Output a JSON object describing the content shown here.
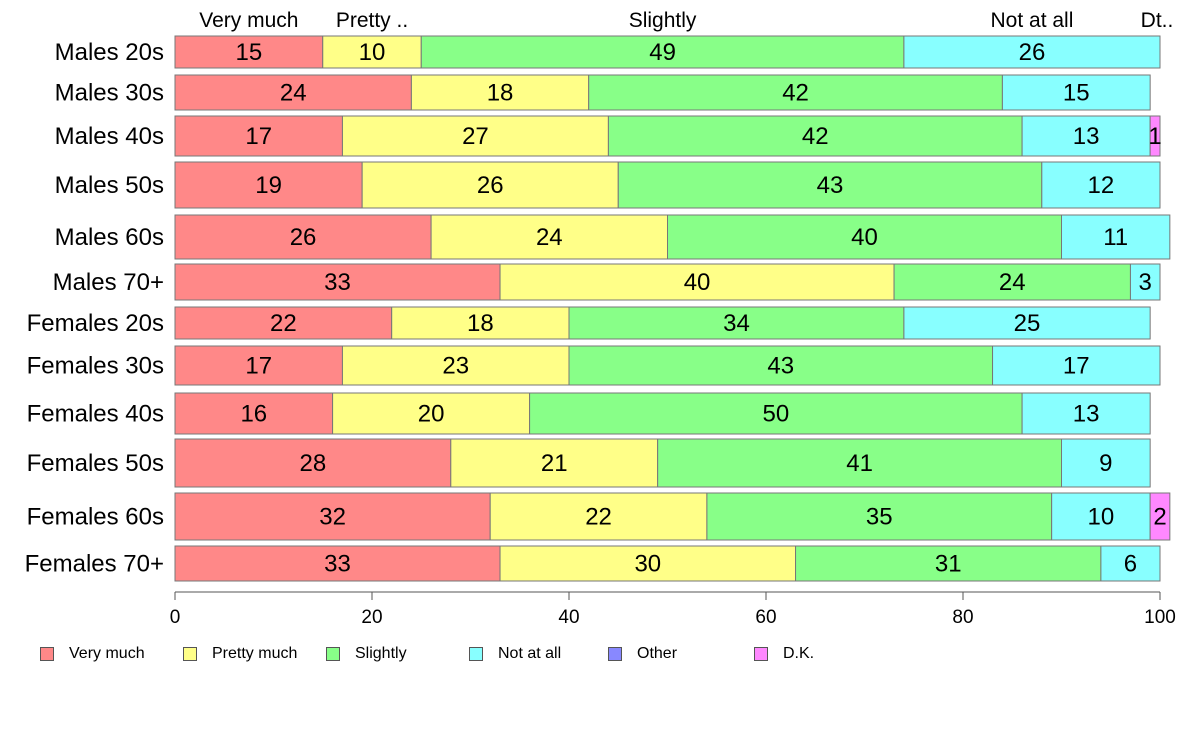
{
  "chart_data": {
    "type": "bar",
    "orientation": "horizontal",
    "stacked": true,
    "categories": [
      "Males 20s",
      "Males 30s",
      "Males 40s",
      "Males 50s",
      "Males 60s",
      "Males 70+",
      "Females 20s",
      "Females 30s",
      "Females 40s",
      "Females 50s",
      "Females 60s",
      "Females 70+"
    ],
    "series": [
      {
        "name": "Very much",
        "color": "#ff8888",
        "values": [
          15,
          24,
          17,
          19,
          26,
          33,
          22,
          17,
          16,
          28,
          32,
          33
        ]
      },
      {
        "name": "Pretty much",
        "color": "#ffff88",
        "values": [
          10,
          18,
          27,
          26,
          24,
          40,
          18,
          23,
          20,
          21,
          22,
          30
        ]
      },
      {
        "name": "Slightly",
        "color": "#88ff88",
        "values": [
          49,
          42,
          42,
          43,
          40,
          24,
          34,
          43,
          50,
          41,
          35,
          31
        ]
      },
      {
        "name": "Not at all",
        "color": "#88ffff",
        "values": [
          26,
          15,
          13,
          12,
          11,
          3,
          25,
          17,
          13,
          9,
          10,
          6
        ]
      },
      {
        "name": "Other",
        "color": "#8888ff",
        "values": [
          0,
          0,
          0,
          0,
          0,
          0,
          0,
          0,
          0,
          0,
          0,
          0
        ]
      },
      {
        "name": "D.K.",
        "color": "#ff88ff",
        "values": [
          0,
          0,
          1,
          0,
          0,
          0,
          0,
          0,
          0,
          0,
          2,
          0
        ]
      }
    ],
    "top_labels": [
      "Very much",
      "Pretty ..",
      "Slightly",
      "Not at all",
      "Dt.."
    ],
    "xlim": [
      0,
      100
    ],
    "x_ticks": [
      0,
      20,
      40,
      60,
      80,
      100
    ],
    "grid": false,
    "legend_position": "bottom"
  }
}
